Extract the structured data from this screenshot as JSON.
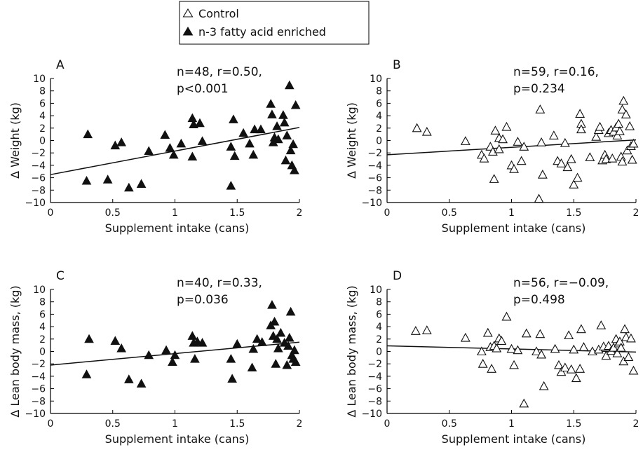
{
  "legend": {
    "entries": [
      {
        "label": "Control",
        "marker": "open-triangle"
      },
      {
        "label": "n-3 fatty acid enriched",
        "marker": "filled-triangle"
      }
    ]
  },
  "chart_data": [
    {
      "type": "scatter",
      "panel": "A",
      "marker": "filled-triangle",
      "stat_line1": "n=48, r=0.50,",
      "stat_line2": "p<0.001",
      "xlabel": "Supplement intake (cans)",
      "ylabel": "Δ Weight (kg)",
      "xlim": [
        0,
        2
      ],
      "ylim": [
        -10,
        10
      ],
      "xticks": [
        0,
        0.5,
        1,
        1.5,
        2
      ],
      "yticks": [
        -10,
        -8,
        -6,
        -4,
        -2,
        0,
        2,
        4,
        6,
        8,
        10
      ],
      "regression": {
        "x": [
          0,
          2
        ],
        "y": [
          -5.5,
          2.1
        ]
      },
      "points": [
        [
          0.29,
          -6.5
        ],
        [
          0.3,
          1.0
        ],
        [
          0.46,
          -6.3
        ],
        [
          0.52,
          -0.8
        ],
        [
          0.57,
          -0.3
        ],
        [
          0.63,
          -7.6
        ],
        [
          0.73,
          -7.0
        ],
        [
          0.79,
          -1.7
        ],
        [
          0.92,
          0.9
        ],
        [
          0.96,
          -1.2
        ],
        [
          0.99,
          -2.3
        ],
        [
          1.05,
          -0.5
        ],
        [
          1.14,
          -2.6
        ],
        [
          1.14,
          3.6
        ],
        [
          1.15,
          2.6
        ],
        [
          1.2,
          2.8
        ],
        [
          1.22,
          -0.1
        ],
        [
          1.45,
          -1.0
        ],
        [
          1.45,
          -7.3
        ],
        [
          1.47,
          3.4
        ],
        [
          1.48,
          -2.5
        ],
        [
          1.55,
          1.2
        ],
        [
          1.6,
          -0.5
        ],
        [
          1.63,
          -2.3
        ],
        [
          1.64,
          1.8
        ],
        [
          1.69,
          1.8
        ],
        [
          1.77,
          5.9
        ],
        [
          1.78,
          4.2
        ],
        [
          1.79,
          -0.3
        ],
        [
          1.8,
          0.5
        ],
        [
          1.82,
          2.3
        ],
        [
          1.83,
          0.2
        ],
        [
          1.87,
          4.1
        ],
        [
          1.88,
          2.9
        ],
        [
          1.89,
          -3.2
        ],
        [
          1.9,
          0.8
        ],
        [
          1.92,
          8.9
        ],
        [
          1.93,
          -1.6
        ],
        [
          1.94,
          -4.0
        ],
        [
          1.95,
          -0.6
        ],
        [
          1.96,
          -4.8
        ],
        [
          1.97,
          5.7
        ]
      ]
    },
    {
      "type": "scatter",
      "panel": "B",
      "marker": "open-triangle",
      "stat_line1": "n=59, r=0.16,",
      "stat_line2": "p=0.234",
      "xlabel": "Supplement intake (cans)",
      "ylabel": "Δ Weight (kg)",
      "xlim": [
        0,
        2
      ],
      "ylim": [
        -10,
        10
      ],
      "xticks": [
        0,
        0.5,
        1,
        1.5,
        2
      ],
      "yticks": [
        -10,
        -8,
        -6,
        -4,
        -2,
        0,
        2,
        4,
        6,
        8,
        10
      ],
      "regression": {
        "x": [
          0,
          2
        ],
        "y": [
          -2.3,
          0.1
        ]
      },
      "points": [
        [
          0.24,
          2.0
        ],
        [
          0.32,
          1.4
        ],
        [
          0.63,
          -0.1
        ],
        [
          0.76,
          -2.3
        ],
        [
          0.78,
          -2.9
        ],
        [
          0.83,
          -1.0
        ],
        [
          0.85,
          -1.8
        ],
        [
          0.86,
          -6.2
        ],
        [
          0.87,
          1.6
        ],
        [
          0.9,
          -1.4
        ],
        [
          0.9,
          0.4
        ],
        [
          0.93,
          0.2
        ],
        [
          0.96,
          2.2
        ],
        [
          1.0,
          -4.0
        ],
        [
          1.02,
          -4.6
        ],
        [
          1.05,
          -0.2
        ],
        [
          1.08,
          -3.3
        ],
        [
          1.1,
          -1.0
        ],
        [
          1.22,
          -9.4
        ],
        [
          1.23,
          5.0
        ],
        [
          1.24,
          -0.3
        ],
        [
          1.25,
          -5.5
        ],
        [
          1.34,
          0.8
        ],
        [
          1.37,
          -3.3
        ],
        [
          1.4,
          -3.7
        ],
        [
          1.43,
          -0.4
        ],
        [
          1.45,
          -4.3
        ],
        [
          1.48,
          -3.0
        ],
        [
          1.5,
          -7.1
        ],
        [
          1.53,
          -6.0
        ],
        [
          1.55,
          4.3
        ],
        [
          1.56,
          2.7
        ],
        [
          1.56,
          1.8
        ],
        [
          1.63,
          -2.7
        ],
        [
          1.68,
          0.6
        ],
        [
          1.7,
          1.7
        ],
        [
          1.71,
          2.2
        ],
        [
          1.73,
          -3.2
        ],
        [
          1.75,
          -2.3
        ],
        [
          1.76,
          -3.0
        ],
        [
          1.78,
          1.2
        ],
        [
          1.8,
          1.7
        ],
        [
          1.81,
          -2.9
        ],
        [
          1.82,
          1.4
        ],
        [
          1.84,
          2.1
        ],
        [
          1.85,
          0.8
        ],
        [
          1.86,
          2.7
        ],
        [
          1.87,
          1.5
        ],
        [
          1.88,
          -2.6
        ],
        [
          1.89,
          5.0
        ],
        [
          1.89,
          -3.4
        ],
        [
          1.9,
          6.4
        ],
        [
          1.92,
          4.2
        ],
        [
          1.93,
          -1.6
        ],
        [
          1.95,
          2.3
        ],
        [
          1.96,
          -0.9
        ],
        [
          1.97,
          -3.1
        ],
        [
          1.98,
          -0.5
        ]
      ]
    },
    {
      "type": "scatter",
      "panel": "C",
      "marker": "filled-triangle",
      "stat_line1": "n=40, r=0.33,",
      "stat_line2": "p=0.036",
      "xlabel": "Supplement intake (cans)",
      "ylabel": "Δ Lean body mass, (kg)",
      "xlim": [
        0,
        2
      ],
      "ylim": [
        -10,
        10
      ],
      "xticks": [
        0,
        0.5,
        1,
        1.5,
        2
      ],
      "yticks": [
        -10,
        -8,
        -6,
        -4,
        -2,
        0,
        2,
        4,
        6,
        8,
        10
      ],
      "regression": {
        "x": [
          0,
          2
        ],
        "y": [
          -2.2,
          1.5
        ]
      },
      "points": [
        [
          0.29,
          -3.7
        ],
        [
          0.31,
          2.0
        ],
        [
          0.52,
          1.7
        ],
        [
          0.57,
          0.5
        ],
        [
          0.63,
          -4.5
        ],
        [
          0.73,
          -5.2
        ],
        [
          0.79,
          -0.6
        ],
        [
          0.93,
          0.2
        ],
        [
          0.98,
          -1.7
        ],
        [
          1.0,
          -0.6
        ],
        [
          1.14,
          2.5
        ],
        [
          1.15,
          1.4
        ],
        [
          1.16,
          -1.2
        ],
        [
          1.18,
          1.6
        ],
        [
          1.22,
          1.4
        ],
        [
          1.45,
          -1.2
        ],
        [
          1.46,
          -4.4
        ],
        [
          1.5,
          1.2
        ],
        [
          1.62,
          -2.6
        ],
        [
          1.63,
          0.4
        ],
        [
          1.66,
          2.0
        ],
        [
          1.7,
          1.5
        ],
        [
          1.77,
          4.2
        ],
        [
          1.78,
          7.5
        ],
        [
          1.79,
          2.5
        ],
        [
          1.8,
          4.8
        ],
        [
          1.81,
          -2.0
        ],
        [
          1.82,
          2.0
        ],
        [
          1.83,
          0.5
        ],
        [
          1.85,
          3.0
        ],
        [
          1.88,
          1.4
        ],
        [
          1.9,
          -2.2
        ],
        [
          1.91,
          0.9
        ],
        [
          1.92,
          2.2
        ],
        [
          1.93,
          6.4
        ],
        [
          1.94,
          -0.6
        ],
        [
          1.95,
          -1.2
        ],
        [
          1.96,
          0.2
        ],
        [
          1.97,
          -1.7
        ]
      ]
    },
    {
      "type": "scatter",
      "panel": "D",
      "marker": "open-triangle",
      "stat_line1": "n=56, r=−0.09,",
      "stat_line2": "p=0.498",
      "xlabel": "Supplement intake (cans)",
      "ylabel": "Δ Lean body mass, (kg)",
      "xlim": [
        0,
        2
      ],
      "ylim": [
        -10,
        10
      ],
      "xticks": [
        0,
        0.5,
        1,
        1.5,
        2
      ],
      "yticks": [
        -10,
        -8,
        -6,
        -4,
        -2,
        0,
        2,
        4,
        6,
        8,
        10
      ],
      "regression": {
        "x": [
          0,
          2
        ],
        "y": [
          0.9,
          -0.1
        ]
      },
      "points": [
        [
          0.23,
          3.3
        ],
        [
          0.32,
          3.4
        ],
        [
          0.63,
          2.2
        ],
        [
          0.76,
          0.0
        ],
        [
          0.77,
          -2.0
        ],
        [
          0.81,
          3.0
        ],
        [
          0.83,
          0.7
        ],
        [
          0.84,
          -2.8
        ],
        [
          0.86,
          0.9
        ],
        [
          0.88,
          0.5
        ],
        [
          0.9,
          2.1
        ],
        [
          0.92,
          1.7
        ],
        [
          0.96,
          5.6
        ],
        [
          1.0,
          0.4
        ],
        [
          1.02,
          -2.2
        ],
        [
          1.05,
          0.2
        ],
        [
          1.1,
          -8.4
        ],
        [
          1.12,
          2.9
        ],
        [
          1.2,
          0.0
        ],
        [
          1.23,
          2.8
        ],
        [
          1.24,
          -0.5
        ],
        [
          1.26,
          -5.6
        ],
        [
          1.35,
          0.4
        ],
        [
          1.38,
          -2.2
        ],
        [
          1.4,
          -3.3
        ],
        [
          1.43,
          -2.6
        ],
        [
          1.46,
          2.6
        ],
        [
          1.48,
          -2.9
        ],
        [
          1.5,
          0.3
        ],
        [
          1.52,
          -4.3
        ],
        [
          1.55,
          -2.8
        ],
        [
          1.56,
          3.6
        ],
        [
          1.58,
          0.7
        ],
        [
          1.65,
          0.0
        ],
        [
          1.7,
          0.3
        ],
        [
          1.72,
          4.2
        ],
        [
          1.74,
          0.8
        ],
        [
          1.76,
          -0.7
        ],
        [
          1.78,
          0.9
        ],
        [
          1.8,
          0.1
        ],
        [
          1.82,
          0.6
        ],
        [
          1.84,
          2.0
        ],
        [
          1.85,
          -0.3
        ],
        [
          1.86,
          1.3
        ],
        [
          1.87,
          1.6
        ],
        [
          1.88,
          0.6
        ],
        [
          1.9,
          -1.6
        ],
        [
          1.91,
          3.6
        ],
        [
          1.92,
          2.3
        ],
        [
          1.94,
          -0.9
        ],
        [
          1.96,
          2.1
        ],
        [
          1.98,
          -3.1
        ]
      ]
    }
  ]
}
